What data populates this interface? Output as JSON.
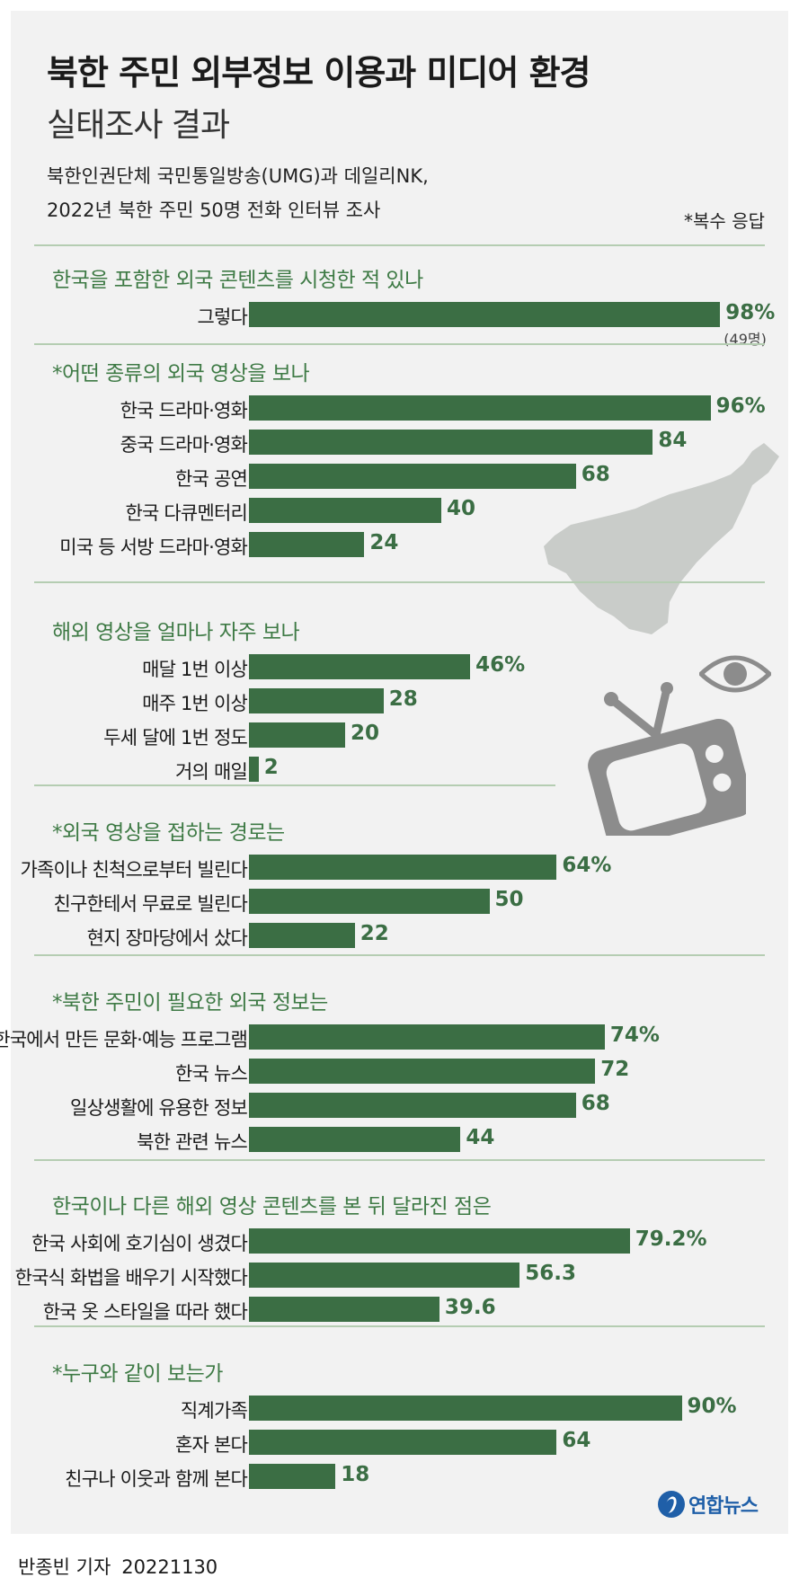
{
  "title_line1": "북한 주민 외부정보 이용과 미디어 환경",
  "title_line2": "실태조사 결과",
  "source_line1": "북한인권단체 국민통일방송(UMG)과 데일리NK,",
  "source_line2": "2022년 북한 주민 50명 전화 인터뷰 조사",
  "note": "*복수 응답",
  "logo_text": "연합뉴스",
  "credit_name": "반종빈 기자",
  "credit_date": "20221130",
  "colors": {
    "bar": "#3b6e44",
    "section_title": "#3e7a45",
    "divider": "#b5cdb2",
    "card": "#f2f2f2"
  },
  "icons": [
    "north-korea-map-icon",
    "tv-icon",
    "eye-icon"
  ],
  "chart_data": [
    {
      "type": "bar",
      "title": "한국을 포함한 외국 콘텐츠를 시청한 적 있나",
      "categories": [
        "그렇다"
      ],
      "values": [
        98
      ],
      "display": [
        "98%"
      ],
      "sub": "(49명)",
      "unit": "%"
    },
    {
      "type": "bar",
      "title": "*어떤 종류의 외국 영상을 보나",
      "categories": [
        "한국 드라마·영화",
        "중국 드라마·영화",
        "한국 공연",
        "한국 다큐멘터리",
        "미국 등 서방 드라마·영화"
      ],
      "values": [
        96,
        84,
        68,
        40,
        24
      ],
      "display": [
        "96%",
        "84",
        "68",
        "40",
        "24"
      ],
      "unit": "%"
    },
    {
      "type": "bar",
      "title": "해외 영상을 얼마나 자주 보나",
      "categories": [
        "매달 1번 이상",
        "매주 1번 이상",
        "두세 달에 1번 정도",
        "거의 매일"
      ],
      "values": [
        46,
        28,
        20,
        2
      ],
      "display": [
        "46%",
        "28",
        "20",
        "2"
      ],
      "unit": "%"
    },
    {
      "type": "bar",
      "title": "*외국 영상을 접하는 경로는",
      "categories": [
        "가족이나 친척으로부터 빌린다",
        "친구한테서 무료로 빌린다",
        "현지 장마당에서 샀다"
      ],
      "values": [
        64,
        50,
        22
      ],
      "display": [
        "64%",
        "50",
        "22"
      ],
      "unit": "%"
    },
    {
      "type": "bar",
      "title": "*북한 주민이 필요한 외국 정보는",
      "categories": [
        "한국에서 만든 문화·예능 프로그램",
        "한국 뉴스",
        "일상생활에 유용한 정보",
        "북한 관련 뉴스"
      ],
      "values": [
        74,
        72,
        68,
        44
      ],
      "display": [
        "74%",
        "72",
        "68",
        "44"
      ],
      "unit": "%"
    },
    {
      "type": "bar",
      "title": "한국이나 다른 해외 영상 콘텐츠를 본 뒤 달라진 점은",
      "categories": [
        "한국 사회에 호기심이 생겼다",
        "한국식 화법을 배우기 시작했다",
        "한국 옷 스타일을 따라 했다"
      ],
      "values": [
        79.2,
        56.3,
        39.6
      ],
      "display": [
        "79.2%",
        "56.3",
        "39.6"
      ],
      "unit": "%"
    },
    {
      "type": "bar",
      "title": "*누구와 같이 보는가",
      "categories": [
        "직계가족",
        "혼자 본다",
        "친구나 이웃과 함께 본다"
      ],
      "values": [
        90,
        64,
        18
      ],
      "display": [
        "90%",
        "64",
        "18"
      ],
      "unit": "%"
    }
  ]
}
